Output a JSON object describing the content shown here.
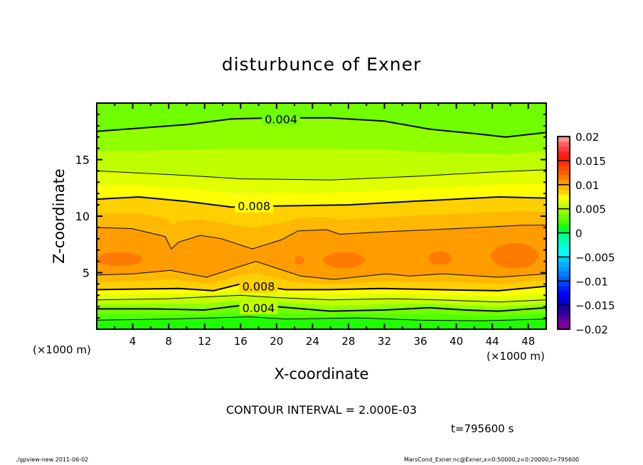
{
  "chart_data": {
    "type": "heatmap",
    "subtype": "filled-contour",
    "title": "disturbunce of Exner",
    "xlabel": "X-coordinate",
    "ylabel": "Z-coordinate",
    "x_unit_left": "(×1000 m)",
    "x_unit_right": "(×1000 m)",
    "xlim": [
      0,
      50
    ],
    "ylim": [
      0,
      20
    ],
    "x_ticks": [
      4,
      8,
      12,
      16,
      20,
      24,
      28,
      32,
      36,
      40,
      44,
      48
    ],
    "y_ticks": [
      5,
      10,
      15
    ],
    "contour_interval_text": "CONTOUR INTERVAL = 2.000E-03",
    "time_text": "t=795600 s",
    "colorbar": {
      "min": -0.02,
      "max": 0.02,
      "step": 0.001,
      "tick_values": [
        0.02,
        0.015,
        0.01,
        0.005,
        0,
        -0.005,
        -0.01,
        -0.015,
        -0.02
      ],
      "tick_labels": [
        "0.02",
        "0.015",
        "0.01",
        "0.005",
        "0",
        "−0.005",
        "−0.01",
        "−0.015",
        "−0.02"
      ],
      "colors": [
        "#800090",
        "#6a0098",
        "#50009a",
        "#30009a",
        "#1800a0",
        "#0000c8",
        "#0000e8",
        "#0000ff",
        "#0020ff",
        "#0040ff",
        "#0060ff",
        "#0080ff",
        "#0098ff",
        "#00b0ff",
        "#00c8ff",
        "#00ffff",
        "#00fff0",
        "#00ffd0",
        "#00ffb0",
        "#00ff90",
        "#00ff40",
        "#20ff00",
        "#50ff00",
        "#70ff00",
        "#90ff00",
        "#c0ff00",
        "#e0ff00",
        "#ffff00",
        "#ffd000",
        "#ffb800",
        "#ff9c00",
        "#ff7a00",
        "#ff6000",
        "#ff4800",
        "#ff3000",
        "#ff1800",
        "#ff2020",
        "#ff4040",
        "#ff6060",
        "#ff9090"
      ]
    },
    "boundary_values": {
      "bottom": 0.0012,
      "top": 0.0032,
      "core": 0.0107
    },
    "contours": [
      {
        "id": "lo-0.002",
        "level": 0.002,
        "points": [
          [
            0,
            0.8
          ],
          [
            8,
            0.9
          ],
          [
            13,
            1.0
          ],
          [
            17,
            1.1
          ],
          [
            21,
            0.9
          ],
          [
            29,
            1.0
          ],
          [
            36,
            0.8
          ],
          [
            43,
            0.75
          ],
          [
            50,
            0.9
          ]
        ]
      },
      {
        "id": "lo-0.004",
        "level": 0.004,
        "points": [
          [
            0,
            1.8
          ],
          [
            6,
            1.8
          ],
          [
            12,
            1.7
          ],
          [
            16,
            2.1
          ],
          [
            20,
            2.0
          ],
          [
            26,
            1.6
          ],
          [
            32,
            1.7
          ],
          [
            37,
            1.9
          ],
          [
            41,
            1.7
          ],
          [
            44.7,
            1.6
          ],
          [
            50,
            1.9
          ]
        ]
      },
      {
        "id": "lo-0.006",
        "level": 0.006,
        "points": [
          [
            0,
            2.6
          ],
          [
            8,
            2.7
          ],
          [
            16,
            3.0
          ],
          [
            20,
            2.8
          ],
          [
            26,
            2.6
          ],
          [
            33,
            2.7
          ],
          [
            38,
            2.6
          ],
          [
            44.7,
            2.4
          ],
          [
            50,
            2.6
          ]
        ]
      },
      {
        "id": "lo-0.008",
        "level": 0.008,
        "points": [
          [
            0,
            3.5
          ],
          [
            9.2,
            3.6
          ],
          [
            13,
            3.4
          ],
          [
            16,
            4.0
          ],
          [
            18,
            3.9
          ],
          [
            21,
            3.5
          ],
          [
            26,
            3.5
          ],
          [
            31.6,
            3.6
          ],
          [
            38,
            3.5
          ],
          [
            44.7,
            3.4
          ],
          [
            50,
            3.8
          ]
        ]
      },
      {
        "id": "lo-0.010",
        "level": 0.01,
        "points": [
          [
            0,
            4.8
          ],
          [
            4,
            4.9
          ],
          [
            8.2,
            5.2
          ],
          [
            12.2,
            4.6
          ],
          [
            17.7,
            6.0
          ],
          [
            22.7,
            4.7
          ],
          [
            26.4,
            4.4
          ],
          [
            32.2,
            4.9
          ],
          [
            34.8,
            4.7
          ],
          [
            38.5,
            4.9
          ],
          [
            44.7,
            4.6
          ],
          [
            50,
            4.9
          ]
        ]
      },
      {
        "id": "hi-0.010",
        "level": 0.01,
        "points": [
          [
            0,
            9.0
          ],
          [
            3.9,
            8.9
          ],
          [
            7.6,
            8.2
          ],
          [
            8.3,
            7.1
          ],
          [
            9.1,
            7.7
          ],
          [
            11.5,
            8.3
          ],
          [
            13.9,
            8.0
          ],
          [
            17.3,
            7.1
          ],
          [
            20.5,
            7.9
          ],
          [
            22.4,
            8.7
          ],
          [
            25.6,
            8.8
          ],
          [
            27,
            8.4
          ],
          [
            31.6,
            8.6
          ],
          [
            40,
            8.9
          ],
          [
            47.4,
            9.2
          ],
          [
            50,
            9.2
          ]
        ]
      },
      {
        "id": "hi-0.008",
        "level": 0.008,
        "points": [
          [
            0,
            11.5
          ],
          [
            4.7,
            11.7
          ],
          [
            10,
            11.3
          ],
          [
            15,
            10.8
          ],
          [
            20,
            10.9
          ],
          [
            28,
            11.0
          ],
          [
            35,
            11.3
          ],
          [
            44.7,
            11.7
          ],
          [
            50,
            11.6
          ]
        ]
      },
      {
        "id": "hi-0.006",
        "level": 0.006,
        "points": [
          [
            0,
            14.0
          ],
          [
            10,
            13.6
          ],
          [
            16,
            13.3
          ],
          [
            26,
            13.2
          ],
          [
            35,
            13.5
          ],
          [
            44,
            13.9
          ],
          [
            50,
            14.1
          ]
        ]
      },
      {
        "id": "hi-0.004",
        "level": 0.004,
        "points": [
          [
            0,
            17.5
          ],
          [
            5,
            17.8
          ],
          [
            10,
            18.1
          ],
          [
            15,
            18.6
          ],
          [
            20,
            18.7
          ],
          [
            26,
            18.7
          ],
          [
            32,
            18.4
          ],
          [
            37,
            17.7
          ],
          [
            42,
            17.3
          ],
          [
            45.5,
            17.0
          ],
          [
            50,
            17.4
          ]
        ]
      }
    ],
    "maxima_patches": [
      {
        "x": 2.5,
        "z": 6.2,
        "rx": 2.6,
        "rz": 0.6,
        "value": 0.0115
      },
      {
        "x": 22.5,
        "z": 6.1,
        "rx": 0.5,
        "rz": 0.4,
        "value": 0.0115
      },
      {
        "x": 27.5,
        "z": 6.1,
        "rx": 2.3,
        "rz": 0.7,
        "value": 0.0115
      },
      {
        "x": 38.2,
        "z": 6.3,
        "rx": 1.3,
        "rz": 0.6,
        "value": 0.0115
      },
      {
        "x": 46.5,
        "z": 6.5,
        "rx": 2.6,
        "rz": 1.1,
        "value": 0.0115
      }
    ],
    "contour_labels": [
      {
        "text": "0.004",
        "x": 20.5,
        "z": 18.6
      },
      {
        "text": "0.008",
        "x": 17.5,
        "z": 10.9
      },
      {
        "text": "0.008",
        "x": 18.0,
        "z": 3.8
      },
      {
        "text": "0.004",
        "x": 18.0,
        "z": 1.9
      }
    ]
  },
  "footer": {
    "left": "./gpview-new   2011-06-02",
    "right": "MarsCond_Exner.nc@Exner,x=0:50000,z=0:20000,t=795600"
  }
}
